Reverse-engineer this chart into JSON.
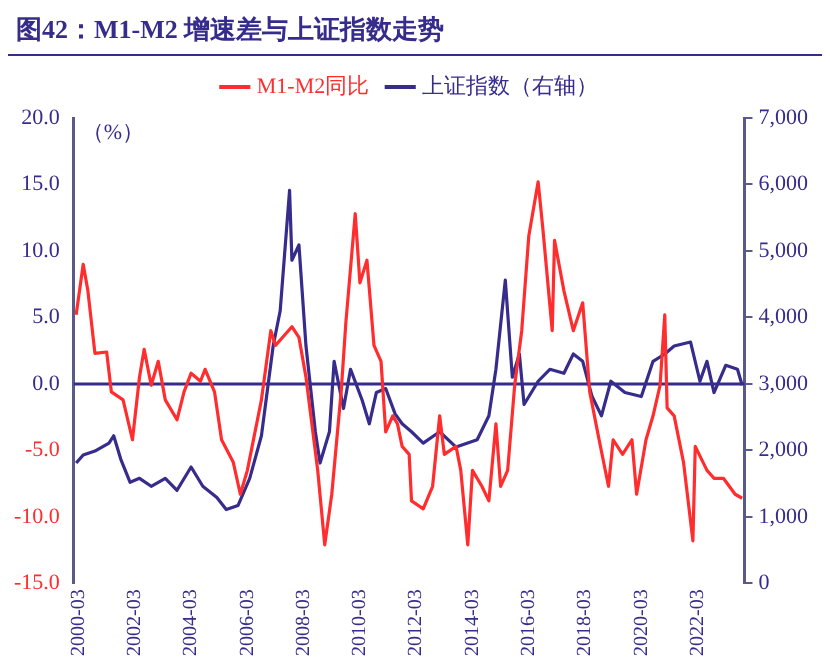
{
  "chart_data": {
    "type": "line",
    "title": "图42：M1-M2 增速差与上证指数走势",
    "ylabel": "（%）",
    "legend": "top",
    "grid": false,
    "marker": "none",
    "line_style": "solid",
    "xlim": [
      "2000-01",
      "2023-11"
    ],
    "xticks": [
      "2000-03",
      "2002-03",
      "2004-03",
      "2006-03",
      "2008-03",
      "2010-03",
      "2012-03",
      "2014-03",
      "2016-03",
      "2018-03",
      "2020-03",
      "2022-03"
    ],
    "ylim": [
      -15,
      20
    ],
    "yticks": [
      {
        "value": -15,
        "label": "-15.0"
      },
      {
        "value": -10,
        "label": "-10.0"
      },
      {
        "value": -5,
        "label": "-5.0"
      },
      {
        "value": 0,
        "label": "0.0"
      },
      {
        "value": 5,
        "label": "5.0"
      },
      {
        "value": 10,
        "label": "10.0"
      },
      {
        "value": 15,
        "label": "15.0"
      },
      {
        "value": 20,
        "label": "20.0"
      }
    ],
    "y2lim": [
      0,
      7000
    ],
    "y2ticks": [
      0,
      {
        "value": 1000,
        "label": "1,000"
      },
      {
        "value": 2000,
        "label": "2,000"
      },
      {
        "value": 3000,
        "label": "3,000"
      },
      {
        "value": 4000,
        "label": "4,000"
      },
      {
        "value": 5000,
        "label": "5,000"
      },
      {
        "value": 6000,
        "label": "6,000"
      },
      {
        "value": 7000,
        "label": "7,000"
      }
    ],
    "ref_lines": [
      {
        "axis": "y",
        "value": 0,
        "color": "#352c8c"
      }
    ],
    "series": [
      {
        "name": "M1-M2同比",
        "color": "#ff2d2d",
        "x": [
          "2000-02",
          "2000-05",
          "2000-07",
          "2000-10",
          "2001-03",
          "2001-05",
          "2001-10",
          "2002-02",
          "2002-05",
          "2002-07",
          "2002-10",
          "2003-01",
          "2003-04",
          "2003-09",
          "2003-12",
          "2004-03",
          "2004-07",
          "2004-09",
          "2005-01",
          "2005-04",
          "2005-09",
          "2005-12",
          "2006-03",
          "2006-09",
          "2007-01",
          "2007-03",
          "2007-07",
          "2007-10",
          "2008-01",
          "2008-04",
          "2008-09",
          "2008-12",
          "2009-03",
          "2009-07",
          "2009-09",
          "2010-01",
          "2010-03",
          "2010-06",
          "2010-09",
          "2010-12",
          "2011-02",
          "2011-05",
          "2011-07",
          "2011-09",
          "2011-12",
          "2012-01",
          "2012-06",
          "2012-10",
          "2013-01",
          "2013-03",
          "2013-08",
          "2013-10",
          "2014-01",
          "2014-03",
          "2014-07",
          "2014-10",
          "2015-01",
          "2015-03",
          "2015-06",
          "2015-09",
          "2015-12",
          "2016-03",
          "2016-07",
          "2016-09",
          "2017-01",
          "2017-02",
          "2017-06",
          "2017-10",
          "2018-02",
          "2018-05",
          "2018-09",
          "2019-01",
          "2019-03",
          "2019-07",
          "2019-11",
          "2020-01",
          "2020-05",
          "2020-08",
          "2020-11",
          "2021-01",
          "2021-02",
          "2021-05",
          "2021-09",
          "2022-01",
          "2022-02",
          "2022-07",
          "2022-10",
          "2023-02",
          "2023-07",
          "2023-10"
        ],
        "values": [
          5.2,
          9.0,
          7.0,
          2.3,
          2.4,
          -0.6,
          -1.2,
          -4.2,
          0.5,
          2.6,
          -0.1,
          1.7,
          -1.2,
          -2.7,
          -0.6,
          0.8,
          0.2,
          1.1,
          -0.6,
          -4.2,
          -5.9,
          -8.3,
          -6.5,
          -1.2,
          4.0,
          2.9,
          3.7,
          4.3,
          3.5,
          0.5,
          -6.5,
          -12.1,
          -8.3,
          -0.6,
          4.6,
          12.8,
          7.6,
          9.3,
          2.9,
          1.7,
          -3.6,
          -2.4,
          -3.0,
          -4.7,
          -5.3,
          -8.8,
          -9.4,
          -7.7,
          -2.4,
          -5.3,
          -4.7,
          -6.5,
          -12.1,
          -6.5,
          -7.7,
          -8.8,
          -3.0,
          -7.7,
          -6.5,
          -0.1,
          4.0,
          11.1,
          15.2,
          11.7,
          4.0,
          10.8,
          7.0,
          4.0,
          6.1,
          -0.6,
          -4.2,
          -7.7,
          -4.2,
          -5.3,
          -4.2,
          -8.3,
          -4.2,
          -2.4,
          -0.1,
          5.2,
          -1.8,
          -2.4,
          -5.9,
          -11.8,
          -4.7,
          -6.5,
          -7.1,
          -7.1,
          -8.3,
          -8.6
        ]
      },
      {
        "name": "上证指数（右轴）",
        "color": "#352c8c",
        "axis": "y2",
        "x": [
          "2000-02",
          "2000-05",
          "2000-10",
          "2001-04",
          "2001-06",
          "2001-09",
          "2002-01",
          "2002-05",
          "2002-10",
          "2003-04",
          "2003-09",
          "2004-03",
          "2004-08",
          "2005-02",
          "2005-06",
          "2005-11",
          "2006-04",
          "2006-09",
          "2007-02",
          "2007-05",
          "2007-09",
          "2007-10",
          "2008-01",
          "2008-04",
          "2008-08",
          "2008-10",
          "2009-02",
          "2009-04",
          "2009-08",
          "2009-11",
          "2010-04",
          "2010-07",
          "2010-10",
          "2011-02",
          "2011-06",
          "2011-09",
          "2012-01",
          "2012-06",
          "2013-01",
          "2013-08",
          "2014-05",
          "2014-10",
          "2015-01",
          "2015-05",
          "2015-08",
          "2015-11",
          "2016-01",
          "2016-07",
          "2016-12",
          "2017-06",
          "2017-10",
          "2018-02",
          "2018-06",
          "2018-10",
          "2019-02",
          "2019-08",
          "2020-03",
          "2020-08",
          "2021-01",
          "2021-05",
          "2021-12",
          "2022-04",
          "2022-07",
          "2022-10",
          "2023-03",
          "2023-08",
          "2023-10"
        ],
        "values": [
          1810,
          1930,
          1990,
          2110,
          2220,
          1870,
          1520,
          1580,
          1460,
          1580,
          1400,
          1750,
          1460,
          1290,
          1110,
          1170,
          1580,
          2220,
          3570,
          4100,
          5910,
          4860,
          5090,
          3570,
          2280,
          1810,
          2280,
          3340,
          2630,
          3220,
          2750,
          2400,
          2870,
          2930,
          2550,
          2400,
          2280,
          2110,
          2280,
          2050,
          2160,
          2520,
          3220,
          4560,
          3100,
          3450,
          2690,
          3040,
          3220,
          3160,
          3450,
          3340,
          2810,
          2520,
          3040,
          2870,
          2810,
          3340,
          3450,
          3570,
          3630,
          3040,
          3340,
          2870,
          3280,
          3220,
          2980
        ]
      }
    ]
  }
}
